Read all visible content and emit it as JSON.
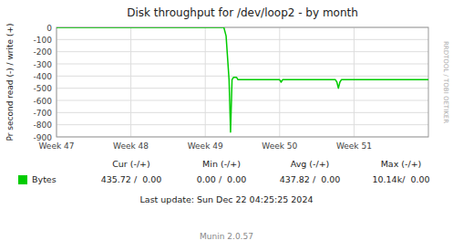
{
  "chart_data": {
    "type": "line",
    "title": "Disk throughput for /dev/loop2 - by month",
    "y_label": "Pr second read (-) / write (+)",
    "x": [
      0.0,
      0.5,
      1.0,
      1.5,
      2.0,
      2.25,
      2.28,
      2.3,
      2.32,
      2.34,
      2.36,
      2.38,
      2.4,
      2.42,
      2.44,
      2.5,
      2.55,
      2.6,
      3.0,
      3.02,
      3.04,
      3.06,
      3.1,
      3.5,
      3.75,
      3.77,
      3.79,
      3.81,
      3.83,
      3.87,
      3.9,
      4.0,
      4.5,
      5.0
    ],
    "series": [
      {
        "name": "Bytes",
        "color": "#00cc00",
        "values": [
          0.0,
          0.0,
          0.0,
          0.0,
          0.0,
          0.0,
          -70,
          -250,
          -430,
          -860,
          -430,
          -410,
          -410,
          -410,
          -430,
          -430,
          -430,
          -430,
          -430,
          -450,
          -430,
          -430,
          -430,
          -430,
          -430,
          -450,
          -500,
          -450,
          -430,
          -430,
          -430,
          -430,
          -430,
          -430
        ]
      }
    ],
    "xlim": [
      0,
      5.0
    ],
    "xticks": [
      {
        "value": 0.0,
        "label": "Week 47"
      },
      {
        "value": 1.0,
        "label": "Week 48"
      },
      {
        "value": 2.0,
        "label": "Week 49"
      },
      {
        "value": 3.0,
        "label": "Week 50"
      },
      {
        "value": 4.0,
        "label": "Week 51"
      }
    ],
    "ylim": [
      -900,
      0
    ],
    "yticks": [
      0,
      -100,
      -200,
      -300,
      -400,
      -500,
      -600,
      -700,
      -800,
      -900
    ],
    "grid": true,
    "annotations": [
      "Cur (-/+)",
      "Min (-/+)",
      "Avg (-/+)",
      "Max (-/+)",
      "435.72 /  0.00",
      "0.00 /  0.00",
      "437.82 /  0.00",
      "10.14k/  0.00",
      "Last update: Sun Dec 22 04:25:25 2024",
      "Munin 2.0.57",
      "RRDTOOL / TOBI OETIKER"
    ]
  }
}
